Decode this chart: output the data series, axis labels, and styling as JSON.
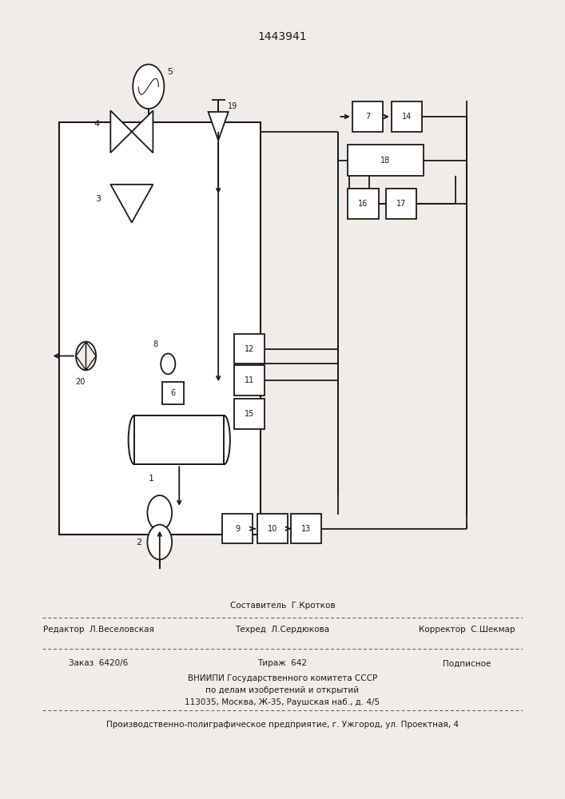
{
  "title": "1443941",
  "bg_color": "#f0ede8",
  "line_color": "#1a1a1a",
  "footer": {
    "line1_left": "Редактор  Л.Веселовская",
    "line1_center_top": "Составитель  Г.Кротков",
    "line1_center_bot": "Техред  Л.Сердюкова",
    "line1_right": "Корректор  С.Шекмар",
    "line2_left": "Заказ  6420/6",
    "line2_center": "Тираж  642",
    "line2_right": "Подписное",
    "line3a": "ВНИИПИ Государственного комитета СССР",
    "line3b": "по делам изобретений и открытий",
    "line3c": "113035, Москва, Ж-35, Раушская наб., д. 4/5",
    "line4": "Производственно-полиграфическое предприятие, г. Ужгород, ул. Проектная, 4"
  }
}
